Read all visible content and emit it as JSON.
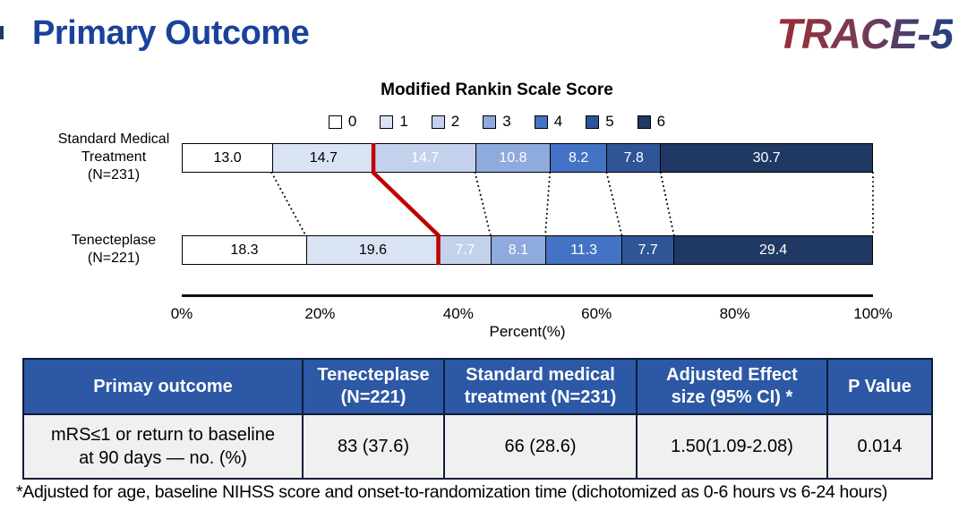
{
  "slide": {
    "title": "Primary Outcome",
    "logo_text": "TRACE-5",
    "footnote": "*Adjusted for age, baseline NIHSS score and onset-to-randomization time (dichotomized as 0-6 hours vs 6-24 hours)"
  },
  "chart_data": {
    "type": "stacked_bar",
    "orientation": "horizontal",
    "title": "Modified Rankin Scale Score",
    "legend_labels": [
      "0",
      "1",
      "2",
      "3",
      "4",
      "5",
      "6"
    ],
    "legend_position": "top",
    "segment_colors": [
      "#FFFFFF",
      "#DAE3F3",
      "#C3D1EC",
      "#8FAADC",
      "#4472C4",
      "#2F5597",
      "#203864"
    ],
    "segment_text_colors": [
      "#000000",
      "#000000",
      "#FFFFFF",
      "#FFFFFF",
      "#FFFFFF",
      "#FFFFFF",
      "#FFFFFF"
    ],
    "series": [
      {
        "name": "Standard Medical Treatment",
        "n_label": "(N=231)",
        "values": [
          13.0,
          14.7,
          14.7,
          10.8,
          8.2,
          7.8,
          30.7
        ]
      },
      {
        "name": "Tenecteplase",
        "n_label": "(N=221)",
        "values": [
          18.3,
          19.6,
          7.7,
          8.1,
          11.3,
          7.7,
          29.4
        ]
      }
    ],
    "x_ticks": [
      "0%",
      "20%",
      "40%",
      "60%",
      "80%",
      "100%"
    ],
    "x_range": [
      0,
      100
    ],
    "xlabel": "Percent(%)",
    "cutoff_after_segment_index": 1,
    "cutoff_color": "#C00000",
    "connector_style": "dotted"
  },
  "table": {
    "headers": [
      "Primay outcome",
      "Tenecteplase\n(N=221)",
      "Standard medical\ntreatment (N=231)",
      "Adjusted Effect\nsize (95% CI) *",
      "P Value"
    ],
    "rows": [
      [
        "mRS≤1 or  return to baseline\nat 90 days — no. (%)",
        "83 (37.6)",
        "66 (28.6)",
        "1.50(1.09-2.08)",
        "0.014"
      ]
    ]
  }
}
